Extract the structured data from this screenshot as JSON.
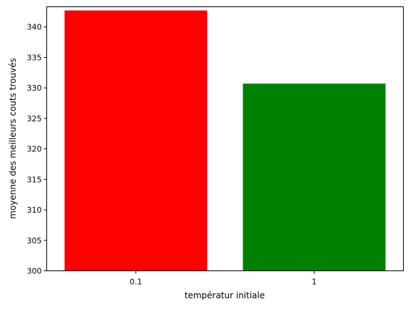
{
  "chart_data": {
    "type": "bar",
    "title": "",
    "xlabel": "températur initiale",
    "ylabel": "moyenne des meilleurs couts trouvés",
    "categories": [
      "0.1",
      "1"
    ],
    "values": [
      342.7,
      330.7
    ],
    "colors": [
      "#ff0000",
      "#008000"
    ],
    "ylim": [
      300,
      343.3
    ],
    "yticks": [
      300,
      305,
      310,
      315,
      320,
      325,
      330,
      335,
      340
    ],
    "grid": false,
    "legend": "none"
  }
}
